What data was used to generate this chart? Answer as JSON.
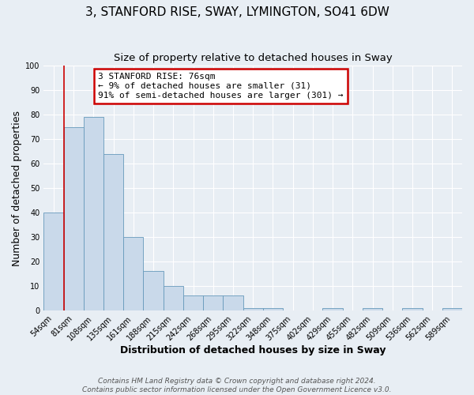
{
  "title": "3, STANFORD RISE, SWAY, LYMINGTON, SO41 6DW",
  "subtitle": "Size of property relative to detached houses in Sway",
  "xlabel": "Distribution of detached houses by size in Sway",
  "ylabel": "Number of detached properties",
  "footer_line1": "Contains HM Land Registry data © Crown copyright and database right 2024.",
  "footer_line2": "Contains public sector information licensed under the Open Government Licence v3.0.",
  "bin_labels": [
    "54sqm",
    "81sqm",
    "108sqm",
    "135sqm",
    "161sqm",
    "188sqm",
    "215sqm",
    "242sqm",
    "268sqm",
    "295sqm",
    "322sqm",
    "348sqm",
    "375sqm",
    "402sqm",
    "429sqm",
    "455sqm",
    "482sqm",
    "509sqm",
    "536sqm",
    "562sqm",
    "589sqm"
  ],
  "bar_values": [
    40,
    75,
    79,
    64,
    30,
    16,
    10,
    6,
    6,
    6,
    1,
    1,
    0,
    0,
    1,
    0,
    1,
    0,
    1,
    0,
    1
  ],
  "bar_color": "#c9d9ea",
  "bar_edge_color": "#6699bb",
  "figure_bg": "#e8eef4",
  "axes_bg": "#e8eef4",
  "grid_color": "#ffffff",
  "ylim": [
    0,
    100
  ],
  "yticks": [
    0,
    10,
    20,
    30,
    40,
    50,
    60,
    70,
    80,
    90,
    100
  ],
  "annotation_box_color": "#cc0000",
  "vline_color": "#cc0000",
  "vline_x_index": 1,
  "title_fontsize": 11,
  "subtitle_fontsize": 9.5,
  "axis_label_fontsize": 9,
  "tick_fontsize": 7,
  "annotation_fontsize": 8,
  "footer_fontsize": 6.5,
  "annotation_line1": "3 STANFORD RISE: 76sqm",
  "annotation_line2": "← 9% of detached houses are smaller (31)",
  "annotation_line3": "91% of semi-detached houses are larger (301) →"
}
